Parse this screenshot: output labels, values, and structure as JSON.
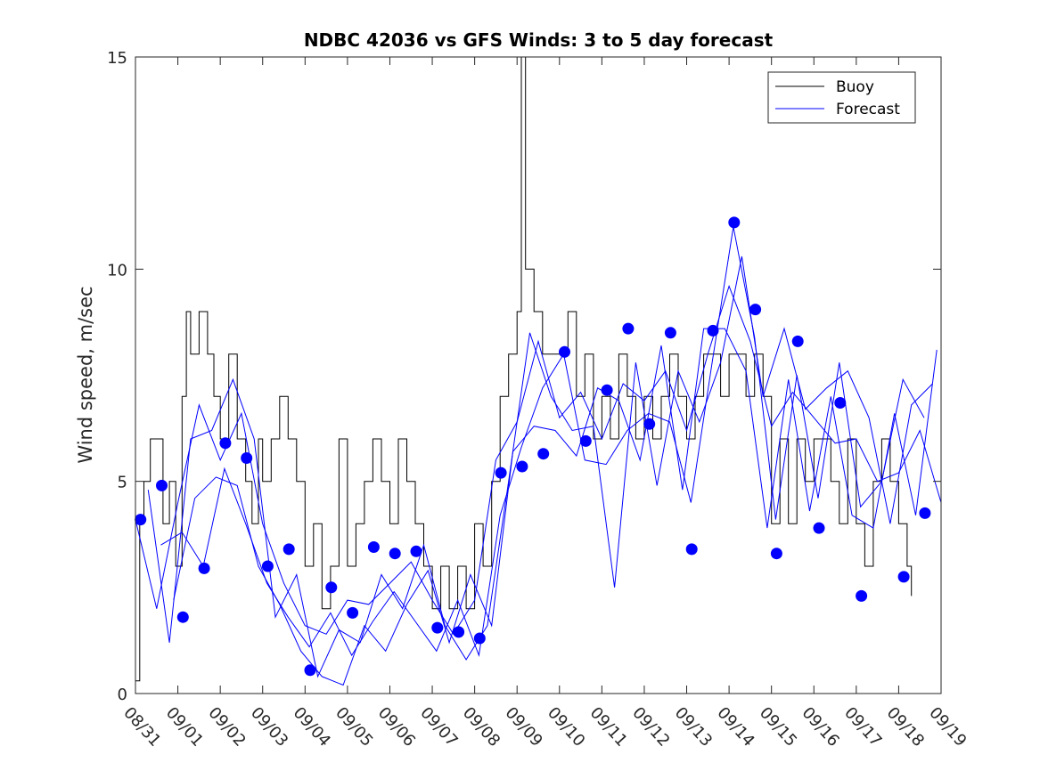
{
  "chart_data": {
    "type": "line",
    "title": "NDBC 42036 vs GFS Winds: 3 to 5 day forecast",
    "xlabel": "",
    "ylabel": "Wind speed, m/sec",
    "xlim": [
      0,
      19
    ],
    "ylim": [
      0,
      15
    ],
    "x_ticks": [
      {
        "day": 0,
        "label": "08/31"
      },
      {
        "day": 1,
        "label": "09/01"
      },
      {
        "day": 2,
        "label": "09/02"
      },
      {
        "day": 3,
        "label": "09/03"
      },
      {
        "day": 4,
        "label": "09/04"
      },
      {
        "day": 5,
        "label": "09/05"
      },
      {
        "day": 6,
        "label": "09/06"
      },
      {
        "day": 7,
        "label": "09/07"
      },
      {
        "day": 8,
        "label": "09/08"
      },
      {
        "day": 9,
        "label": "09/09"
      },
      {
        "day": 10,
        "label": "09/10"
      },
      {
        "day": 11,
        "label": "09/11"
      },
      {
        "day": 12,
        "label": "09/12"
      },
      {
        "day": 13,
        "label": "09/13"
      },
      {
        "day": 14,
        "label": "09/14"
      },
      {
        "day": 15,
        "label": "09/15"
      },
      {
        "day": 16,
        "label": "09/16"
      },
      {
        "day": 17,
        "label": "09/17"
      },
      {
        "day": 18,
        "label": "09/18"
      },
      {
        "day": 19,
        "label": "09/19"
      }
    ],
    "y_ticks": [
      {
        "value": 0,
        "label": "0"
      },
      {
        "value": 5,
        "label": "5"
      },
      {
        "value": 10,
        "label": "10"
      },
      {
        "value": 15,
        "label": "15"
      }
    ],
    "legend": {
      "position": "top-right",
      "entries": [
        {
          "name": "Buoy",
          "color": "#000000"
        },
        {
          "name": "Forecast",
          "color": "#0000ff"
        }
      ]
    },
    "series": [
      {
        "name": "Buoy",
        "color": "#000000",
        "x": [
          0,
          0.1,
          0.2,
          0.35,
          0.5,
          0.65,
          0.8,
          0.95,
          1.1,
          1.2,
          1.3,
          1.5,
          1.7,
          1.85,
          2.0,
          2.2,
          2.4,
          2.6,
          2.75,
          2.9,
          3.0,
          3.2,
          3.4,
          3.6,
          3.8,
          4.0,
          4.2,
          4.4,
          4.6,
          4.8,
          5.0,
          5.2,
          5.4,
          5.6,
          5.8,
          6.0,
          6.2,
          6.4,
          6.6,
          6.8,
          7.0,
          7.2,
          7.4,
          7.6,
          7.8,
          8.0,
          8.2,
          8.4,
          8.6,
          8.8,
          9.0,
          9.1,
          9.2,
          9.4,
          9.6,
          9.8,
          10.0,
          10.2,
          10.4,
          10.6,
          10.8,
          11.0,
          11.2,
          11.4,
          11.6,
          11.8,
          12.0,
          12.2,
          12.4,
          12.6,
          12.8,
          13.0,
          13.2,
          13.4,
          13.6,
          13.8,
          14.0,
          14.2,
          14.4,
          14.6,
          14.8,
          15.0,
          15.2,
          15.4,
          15.6,
          15.8,
          16.0,
          16.2,
          16.4,
          16.6,
          16.8,
          17.0,
          17.2,
          17.4,
          17.6,
          17.8,
          18.0,
          18.2,
          18.3
        ],
        "values": [
          0.3,
          4,
          5,
          6,
          6,
          4,
          5,
          3,
          7,
          9,
          8,
          9,
          8,
          7,
          6,
          8,
          6,
          5,
          4,
          6,
          5,
          6,
          7,
          6,
          5,
          3,
          4,
          2,
          3,
          6,
          3,
          4,
          5,
          6,
          5,
          4,
          6,
          5,
          4,
          3,
          2,
          3,
          2,
          3,
          2,
          4,
          3,
          5,
          7,
          8,
          9,
          15,
          10,
          9,
          8,
          8,
          8,
          9,
          7,
          8,
          6,
          7,
          6,
          8,
          7,
          6,
          7,
          6,
          7,
          8,
          7,
          6,
          7,
          8,
          8,
          7,
          8,
          8,
          7,
          8,
          7,
          4,
          6,
          4,
          6,
          5,
          6,
          6,
          5,
          4,
          6,
          4,
          3,
          5,
          6,
          5,
          4,
          3,
          2.3
        ]
      },
      {
        "name": "Forecast",
        "color": "#0000ff",
        "x": [
          0,
          0.5,
          1.0,
          1.5,
          2.0,
          2.5,
          3.0,
          3.5,
          4.0,
          4.5,
          5.0,
          5.5,
          6.0,
          6.5,
          7.0,
          7.5,
          8.0,
          8.5,
          9.0,
          9.5,
          10.0,
          10.5,
          11.0,
          11.5,
          12.0,
          12.5,
          13.0,
          13.5,
          14.0,
          14.5,
          15.0,
          15.5,
          16.0,
          16.5,
          17.0,
          17.5,
          18.0,
          18.5,
          19.0
        ],
        "values": [
          4.1,
          2.0,
          4.5,
          6.8,
          5.5,
          6.6,
          4.0,
          2.6,
          1.6,
          1.4,
          2.2,
          2.1,
          2.6,
          3.1,
          2.2,
          1.4,
          2.2,
          5.5,
          6.4,
          8.3,
          6.5,
          7.1,
          6.0,
          7.3,
          6.9,
          7.6,
          6.2,
          8.0,
          9.6,
          8.3,
          6.3,
          7.1,
          6.5,
          5.9,
          6.0,
          5.0,
          5.2,
          6.2,
          4.5
        ]
      },
      {
        "name": "Forecast",
        "color": "#0000ff",
        "x": [
          0.3,
          0.8,
          1.3,
          1.8,
          2.3,
          2.8,
          3.3,
          3.8,
          4.3,
          4.8,
          5.3,
          5.8,
          6.3,
          6.8,
          7.3,
          7.8,
          8.3,
          8.8,
          9.3,
          9.8,
          10.3,
          10.8,
          11.3,
          11.8,
          12.3,
          12.8,
          13.3,
          13.8,
          14.3,
          14.8,
          15.3,
          15.8,
          16.3,
          16.8,
          17.3,
          17.8,
          18.3,
          18.8
        ],
        "values": [
          4.8,
          1.2,
          6.0,
          6.2,
          7.4,
          6.0,
          1.8,
          2.8,
          0.4,
          1.5,
          1.2,
          2.8,
          2.0,
          3.5,
          1.6,
          0.8,
          1.6,
          5.0,
          8.5,
          7.0,
          6.2,
          6.3,
          2.5,
          7.8,
          4.9,
          7.6,
          6.4,
          7.8,
          10.3,
          7.0,
          8.6,
          6.7,
          7.2,
          7.6,
          6.5,
          4.0,
          6.8,
          7.3
        ]
      },
      {
        "name": "Forecast",
        "color": "#0000ff",
        "x": [
          0.6,
          1.1,
          1.6,
          2.1,
          2.6,
          3.1,
          3.6,
          4.1,
          4.6,
          5.1,
          5.6,
          6.1,
          6.6,
          7.1,
          7.6,
          8.1,
          8.6,
          9.1,
          9.6,
          10.1,
          10.6,
          11.1,
          11.6,
          12.1,
          12.6,
          13.1,
          13.6,
          14.1,
          14.6,
          15.1,
          15.6,
          16.1,
          16.6,
          17.1,
          17.6,
          18.1,
          18.6
        ],
        "values": [
          3.5,
          3.8,
          3.0,
          5.3,
          4.0,
          2.6,
          1.8,
          1.1,
          1.9,
          0.9,
          1.7,
          2.4,
          1.7,
          1.0,
          2.2,
          0.9,
          4.2,
          5.8,
          7.2,
          8.0,
          5.5,
          5.4,
          6.2,
          6.6,
          6.4,
          4.5,
          7.8,
          11.0,
          8.4,
          4.1,
          7.5,
          4.6,
          7.8,
          4.4,
          5.0,
          7.4,
          6.5
        ]
      },
      {
        "name": "Forecast",
        "color": "#0000ff",
        "x": [
          0.9,
          1.4,
          1.9,
          2.4,
          2.9,
          3.4,
          3.9,
          4.4,
          4.9,
          5.4,
          5.9,
          6.4,
          6.9,
          7.4,
          7.9,
          8.4,
          8.9,
          9.4,
          9.9,
          10.4,
          10.9,
          11.4,
          11.9,
          12.4,
          12.9,
          13.4,
          13.9,
          14.4,
          14.9,
          15.4,
          15.9,
          16.4,
          16.9,
          17.4,
          17.9,
          18.4,
          18.9
        ],
        "values": [
          2.2,
          4.6,
          5.1,
          4.9,
          3.0,
          2.1,
          1.0,
          0.4,
          0.2,
          1.6,
          1.0,
          2.1,
          2.9,
          1.2,
          2.8,
          1.6,
          5.7,
          6.3,
          6.2,
          5.6,
          7.2,
          6.9,
          5.5,
          8.2,
          4.8,
          8.6,
          8.6,
          7.6,
          3.9,
          7.4,
          4.3,
          7.0,
          4.2,
          3.9,
          6.6,
          4.2,
          8.1
        ]
      }
    ],
    "markers": {
      "name": "Forecast points",
      "color": "#0000ff",
      "x": [
        0.12,
        0.62,
        1.12,
        1.62,
        2.12,
        2.62,
        3.12,
        3.62,
        4.12,
        4.62,
        5.12,
        5.62,
        6.12,
        6.62,
        7.12,
        7.62,
        8.12,
        8.62,
        9.12,
        9.62,
        10.12,
        10.62,
        11.12,
        11.62,
        12.12,
        12.62,
        13.12,
        13.62,
        14.12,
        14.62,
        15.12,
        15.62,
        16.12,
        16.62,
        17.12,
        17.62,
        18.12,
        18.62
      ],
      "values": [
        4.1,
        4.9,
        1.8,
        2.95,
        5.9,
        5.55,
        3.0,
        3.4,
        0.55,
        2.5,
        1.9,
        3.45,
        3.3,
        3.35,
        1.55,
        1.45,
        1.3,
        5.2,
        5.35,
        5.65,
        8.05,
        5.95,
        7.15,
        8.6,
        6.35,
        8.5,
        3.4,
        8.55,
        11.1,
        9.05,
        3.3,
        8.3,
        3.9,
        6.85,
        2.3,
        null,
        2.75,
        4.25
      ]
    }
  }
}
